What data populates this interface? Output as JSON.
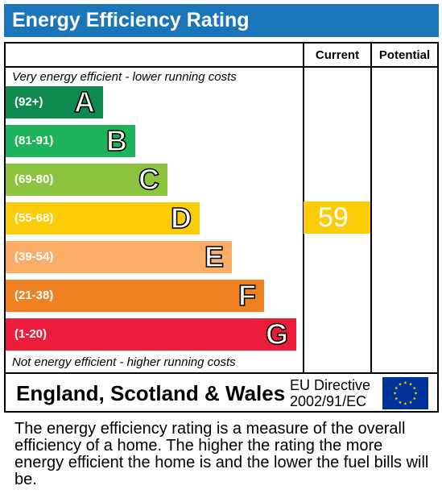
{
  "header": {
    "title": "Energy Efficiency Rating"
  },
  "columns": {
    "current": "Current",
    "potential": "Potential"
  },
  "scale": {
    "top_text": "Very energy efficient - lower running costs",
    "bottom_text": "Not energy efficient - higher running costs"
  },
  "chart_data": {
    "type": "bar",
    "title": "Energy Efficiency Rating",
    "bands": [
      {
        "letter": "A",
        "range": "(92+)",
        "color": "#0f8a4f"
      },
      {
        "letter": "B",
        "range": "(81-91)",
        "color": "#1db35b"
      },
      {
        "letter": "C",
        "range": "(69-80)",
        "color": "#8cc43f"
      },
      {
        "letter": "D",
        "range": "(55-68)",
        "color": "#fdcc09"
      },
      {
        "letter": "E",
        "range": "(39-54)",
        "color": "#f9ad66"
      },
      {
        "letter": "F",
        "range": "(21-38)",
        "color": "#f08122"
      },
      {
        "letter": "G",
        "range": "(1-20)",
        "color": "#ec1c3a"
      }
    ],
    "current": {
      "value": 59,
      "band": "D",
      "color": "#fdcc09"
    },
    "potential": null
  },
  "footer": {
    "region": "England, Scotland & Wales",
    "directive_line1": "EU Directive",
    "directive_line2": "2002/91/EC",
    "flag_icon": "eu-flag-icon",
    "flag_color": "#003399",
    "star_color": "#ffcc00"
  },
  "description": "The energy efficiency rating is a measure of the overall efficiency of a home. The higher the rating the more energy efficient the home is and the lower the fuel bills will be."
}
